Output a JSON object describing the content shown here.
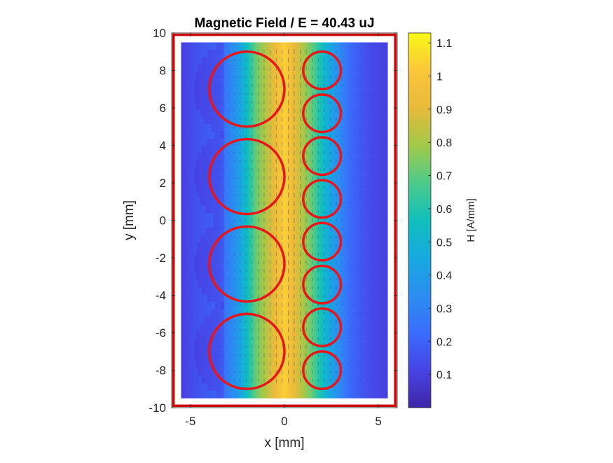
{
  "chart_data": {
    "type": "heatmap",
    "title": "Magnetic Field  / E = 40.43 uJ",
    "xlabel": "x [mm]",
    "ylabel": "y [mm]",
    "xlim": [
      -6,
      6
    ],
    "ylim": [
      -10,
      10
    ],
    "x_ticks": [
      -5,
      0,
      5
    ],
    "y_ticks": [
      -10,
      -8,
      -6,
      -4,
      -2,
      0,
      2,
      4,
      6,
      8,
      10
    ],
    "field_domain": {
      "x": [
        -5.5,
        5.5
      ],
      "y": [
        -9.5,
        9.5
      ]
    },
    "boundary_rectangle": {
      "x": [
        -5.9,
        5.9
      ],
      "y": [
        -9.9,
        9.9
      ],
      "color": "#cc0000"
    },
    "colorbar": {
      "label": "H [A/mm]",
      "range": [
        0,
        1.13
      ],
      "ticks": [
        0.1,
        0.2,
        0.3,
        0.4,
        0.5,
        0.6,
        0.7,
        0.8,
        0.9,
        1,
        1.1
      ]
    },
    "circles": [
      {
        "cx": -2,
        "cy": 7,
        "r": 2
      },
      {
        "cx": -2,
        "cy": 2.33,
        "r": 2
      },
      {
        "cx": -2,
        "cy": -2.33,
        "r": 2
      },
      {
        "cx": -2,
        "cy": -7,
        "r": 2
      },
      {
        "cx": 2,
        "cy": 8,
        "r": 1
      },
      {
        "cx": 2,
        "cy": 5.71,
        "r": 1
      },
      {
        "cx": 2,
        "cy": 3.43,
        "r": 1
      },
      {
        "cx": 2,
        "cy": 1.14,
        "r": 1
      },
      {
        "cx": 2,
        "cy": -1.14,
        "r": 1
      },
      {
        "cx": 2,
        "cy": -3.43,
        "r": 1
      },
      {
        "cx": 2,
        "cy": -5.71,
        "r": 1
      },
      {
        "cx": 2,
        "cy": -8,
        "r": 1
      }
    ],
    "circle_color": "#e8161b",
    "field_profile": {
      "x": [
        -5.5,
        -4.5,
        -3.5,
        -2.5,
        -1.5,
        -0.5,
        0,
        0.5,
        1.5,
        2.5,
        3.5,
        4.5,
        5.5
      ],
      "H": [
        0.1,
        0.16,
        0.2,
        0.38,
        0.72,
        0.92,
        1.05,
        0.92,
        0.7,
        0.42,
        0.22,
        0.14,
        0.1
      ]
    },
    "quiver": {
      "direction": "vertical",
      "color": "#1a3a7a"
    }
  }
}
